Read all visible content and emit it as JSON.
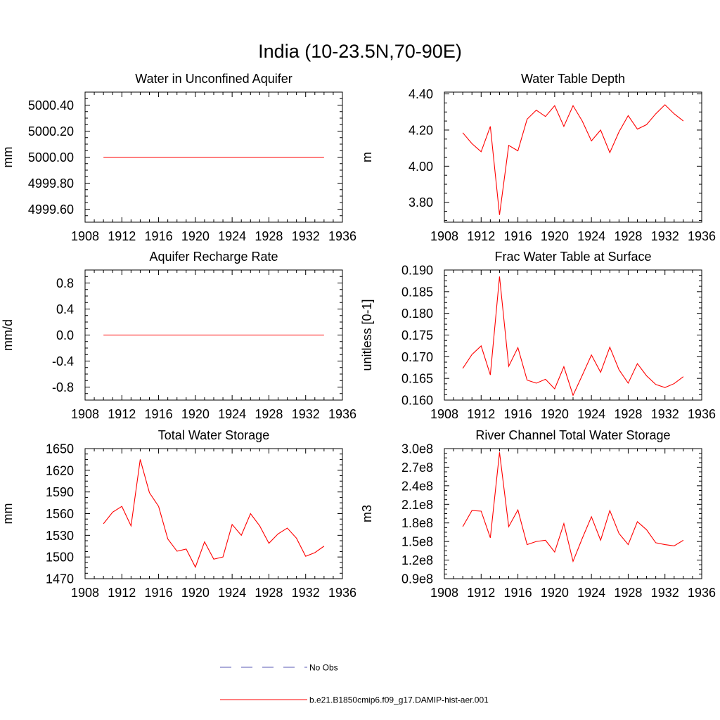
{
  "figure": {
    "title": "India (10-23.5N,70-90E)",
    "line_color": "#ff0000",
    "obs_color": "#5a5ab4"
  },
  "legend": {
    "obs_label": "No Obs",
    "model_label": "b.e21.B1850cmip6.f09_g17.DAMIP-hist-aer.001"
  },
  "chart_data": [
    {
      "type": "line",
      "title": "Water in Unconfined Aquifer",
      "ylabel": "mm",
      "xlim": [
        1908,
        1936
      ],
      "xticks": [
        "1908",
        "1912",
        "1916",
        "1920",
        "1924",
        "1928",
        "1932",
        "1936"
      ],
      "ylim": [
        4999.5,
        5000.5
      ],
      "yticks": [
        4999.6,
        4999.8,
        5000.0,
        5000.2,
        5000.4
      ],
      "ytick_labels": [
        "4999.60",
        "4999.80",
        "5000.00",
        "5000.20",
        "5000.40"
      ],
      "series": [
        {
          "x": [
            1910,
            1911,
            1912,
            1913,
            1914,
            1915,
            1916,
            1917,
            1918,
            1919,
            1920,
            1921,
            1922,
            1923,
            1924,
            1925,
            1926,
            1927,
            1928,
            1929,
            1930,
            1931,
            1932,
            1933,
            1934
          ],
          "values": [
            5000,
            5000,
            5000,
            5000,
            5000,
            5000,
            5000,
            5000,
            5000,
            5000,
            5000,
            5000,
            5000,
            5000,
            5000,
            5000,
            5000,
            5000,
            5000,
            5000,
            5000,
            5000,
            5000,
            5000,
            5000
          ]
        }
      ]
    },
    {
      "type": "line",
      "title": "Water Table Depth",
      "ylabel": "m",
      "xlim": [
        1908,
        1936
      ],
      "xticks": [
        "1908",
        "1912",
        "1916",
        "1920",
        "1924",
        "1928",
        "1932",
        "1936"
      ],
      "ylim": [
        3.69,
        4.41
      ],
      "yticks": [
        3.8,
        4.0,
        4.2,
        4.4
      ],
      "ytick_labels": [
        "3.80",
        "4.00",
        "4.20",
        "4.40"
      ],
      "series": [
        {
          "x": [
            1910,
            1911,
            1912,
            1913,
            1914,
            1915,
            1916,
            1917,
            1918,
            1919,
            1920,
            1921,
            1922,
            1923,
            1924,
            1925,
            1926,
            1927,
            1928,
            1929,
            1930,
            1931,
            1932,
            1933,
            1934
          ],
          "values": [
            4.185,
            4.125,
            4.08,
            4.22,
            3.73,
            4.115,
            4.085,
            4.26,
            4.31,
            4.275,
            4.335,
            4.22,
            4.335,
            4.25,
            4.14,
            4.2,
            4.075,
            4.19,
            4.28,
            4.205,
            4.23,
            4.29,
            4.34,
            4.29,
            4.25
          ]
        }
      ]
    },
    {
      "type": "line",
      "title": "Aquifer Recharge Rate",
      "ylabel": "mm/d",
      "xlim": [
        1908,
        1936
      ],
      "xticks": [
        "1908",
        "1912",
        "1916",
        "1920",
        "1924",
        "1928",
        "1932",
        "1936"
      ],
      "ylim": [
        -1.0,
        1.0
      ],
      "yticks": [
        -0.8,
        -0.4,
        0.0,
        0.4,
        0.8
      ],
      "ytick_labels": [
        "-0.8",
        "-0.4",
        "0.0",
        "0.4",
        "0.8"
      ],
      "series": [
        {
          "x": [
            1910,
            1911,
            1912,
            1913,
            1914,
            1915,
            1916,
            1917,
            1918,
            1919,
            1920,
            1921,
            1922,
            1923,
            1924,
            1925,
            1926,
            1927,
            1928,
            1929,
            1930,
            1931,
            1932,
            1933,
            1934
          ],
          "values": [
            0,
            0,
            0,
            0,
            0,
            0,
            0,
            0,
            0,
            0,
            0,
            0,
            0,
            0,
            0,
            0,
            0,
            0,
            0,
            0,
            0,
            0,
            0,
            0,
            0
          ]
        }
      ]
    },
    {
      "type": "line",
      "title": "Frac Water Table at Surface",
      "ylabel": "unitless [0-1]",
      "xlim": [
        1908,
        1936
      ],
      "xticks": [
        "1908",
        "1912",
        "1916",
        "1920",
        "1924",
        "1928",
        "1932",
        "1936"
      ],
      "ylim": [
        0.16,
        0.19
      ],
      "yticks": [
        0.16,
        0.165,
        0.17,
        0.175,
        0.18,
        0.185,
        0.19
      ],
      "ytick_labels": [
        "0.160",
        "0.165",
        "0.170",
        "0.175",
        "0.180",
        "0.185",
        "0.190"
      ],
      "series": [
        {
          "x": [
            1910,
            1911,
            1912,
            1913,
            1914,
            1915,
            1916,
            1917,
            1918,
            1919,
            1920,
            1921,
            1922,
            1923,
            1924,
            1925,
            1926,
            1927,
            1928,
            1929,
            1930,
            1931,
            1932,
            1933,
            1934
          ],
          "values": [
            0.1673,
            0.1705,
            0.1725,
            0.1658,
            0.1885,
            0.1678,
            0.1721,
            0.1646,
            0.1639,
            0.1648,
            0.1626,
            0.1677,
            0.1611,
            0.1657,
            0.1704,
            0.1664,
            0.1722,
            0.167,
            0.1639,
            0.1684,
            0.1656,
            0.1636,
            0.1629,
            0.1638,
            0.1654
          ]
        }
      ]
    },
    {
      "type": "line",
      "title": "Total Water Storage",
      "ylabel": "mm",
      "xlim": [
        1908,
        1936
      ],
      "xticks": [
        "1908",
        "1912",
        "1916",
        "1920",
        "1924",
        "1928",
        "1932",
        "1936"
      ],
      "ylim": [
        1470,
        1650
      ],
      "yticks": [
        1470,
        1500,
        1530,
        1560,
        1590,
        1620,
        1650
      ],
      "ytick_labels": [
        "1470",
        "1500",
        "1530",
        "1560",
        "1590",
        "1620",
        "1650"
      ],
      "series": [
        {
          "x": [
            1910,
            1911,
            1912,
            1913,
            1914,
            1915,
            1916,
            1917,
            1918,
            1919,
            1920,
            1921,
            1922,
            1923,
            1924,
            1925,
            1926,
            1927,
            1928,
            1929,
            1930,
            1931,
            1932,
            1933,
            1934
          ],
          "values": [
            1546,
            1562,
            1570,
            1543,
            1635,
            1589,
            1570,
            1525,
            1508,
            1511,
            1486,
            1521,
            1497,
            1500,
            1545,
            1530,
            1560,
            1543,
            1519,
            1532,
            1540,
            1526,
            1501,
            1506,
            1515
          ]
        }
      ]
    },
    {
      "type": "line",
      "title": "River Channel Total Water Storage",
      "ylabel": "m3",
      "xlim": [
        1908,
        1936
      ],
      "xticks": [
        "1908",
        "1912",
        "1916",
        "1920",
        "1924",
        "1928",
        "1932",
        "1936"
      ],
      "ylim": [
        90000000,
        300000000
      ],
      "yticks": [
        90000000,
        120000000,
        150000000,
        180000000,
        210000000,
        240000000,
        270000000,
        300000000
      ],
      "ytick_labels": [
        "0.9e8",
        "1.2e8",
        "1.5e8",
        "1.8e8",
        "2.1e8",
        "2.4e8",
        "2.7e8",
        "3.0e8"
      ],
      "series": [
        {
          "x": [
            1910,
            1911,
            1912,
            1913,
            1914,
            1915,
            1916,
            1917,
            1918,
            1919,
            1920,
            1921,
            1922,
            1923,
            1924,
            1925,
            1926,
            1927,
            1928,
            1929,
            1930,
            1931,
            1932,
            1933,
            1934
          ],
          "values": [
            174000000,
            200000000,
            199000000,
            156000000,
            294000000,
            174000000,
            201000000,
            145000000,
            150000000,
            152000000,
            133000000,
            179000000,
            118000000,
            155000000,
            190000000,
            152000000,
            200000000,
            163000000,
            145000000,
            182000000,
            169000000,
            148000000,
            145000000,
            143000000,
            152000000
          ]
        }
      ]
    }
  ]
}
